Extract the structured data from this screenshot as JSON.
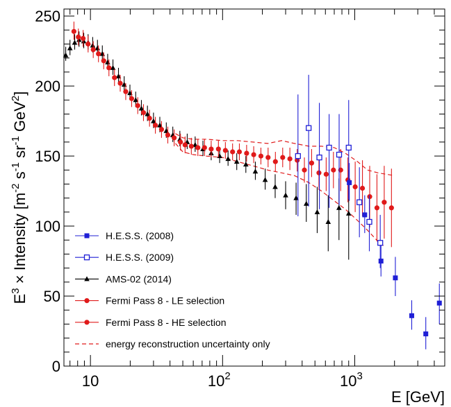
{
  "chart_data": {
    "type": "scatter",
    "xlabel": "E [GeV]",
    "ylabel_parts": [
      "E",
      "3",
      " × Intensity [m",
      "-2",
      " s",
      "-1",
      " sr",
      "-1",
      " GeV",
      "2",
      "]"
    ],
    "xscale": "log",
    "xlim": [
      6.3,
      4800
    ],
    "ylim": [
      0,
      255
    ],
    "x_tick_labels": [
      {
        "value": 10,
        "base": "10",
        "exp": ""
      },
      {
        "value": 100,
        "base": "10",
        "exp": "2"
      },
      {
        "value": 1000,
        "base": "10",
        "exp": "3"
      }
    ],
    "y_ticks": [
      0,
      50,
      100,
      150,
      200,
      250
    ],
    "legend_position": "bottom-left",
    "series": [
      {
        "name": "H.E.S.S. (2008)",
        "color": "#1f1fd6",
        "marker": "square-filled",
        "points": [
          {
            "x": 910,
            "y": 131,
            "lo": 118,
            "hi": 145
          },
          {
            "x": 1190,
            "y": 108,
            "lo": 95,
            "hi": 122
          },
          {
            "x": 1580,
            "y": 75,
            "lo": 64,
            "hi": 86
          },
          {
            "x": 2030,
            "y": 63,
            "lo": 50,
            "hi": 78
          },
          {
            "x": 2700,
            "y": 36,
            "lo": 26,
            "hi": 47
          },
          {
            "x": 3450,
            "y": 23,
            "lo": 12,
            "hi": 35
          },
          {
            "x": 4370,
            "y": 45,
            "lo": 30,
            "hi": 59
          }
        ]
      },
      {
        "name": "H.E.S.S. (2009)",
        "color": "#1f1fd6",
        "marker": "square-open",
        "points": [
          {
            "x": 372,
            "y": 150,
            "lo": 107,
            "hi": 194
          },
          {
            "x": 448,
            "y": 170,
            "lo": 114,
            "hi": 208
          },
          {
            "x": 540,
            "y": 149,
            "lo": 112,
            "hi": 188
          },
          {
            "x": 640,
            "y": 156,
            "lo": 113,
            "hi": 180
          },
          {
            "x": 762,
            "y": 151,
            "lo": 115,
            "hi": 180
          },
          {
            "x": 900,
            "y": 156,
            "lo": 119,
            "hi": 190
          },
          {
            "x": 1085,
            "y": 117,
            "lo": 92,
            "hi": 142
          },
          {
            "x": 1290,
            "y": 103,
            "lo": 82,
            "hi": 122
          },
          {
            "x": 1560,
            "y": 88,
            "lo": 70,
            "hi": 108
          }
        ]
      },
      {
        "name": "AMS-02 (2014)",
        "color": "#000000",
        "marker": "triangle",
        "points": [
          {
            "x": 6.5,
            "y": 222,
            "lo": 218,
            "hi": 228
          },
          {
            "x": 7.0,
            "y": 227,
            "lo": 222,
            "hi": 233
          },
          {
            "x": 7.6,
            "y": 231,
            "lo": 226,
            "hi": 237
          },
          {
            "x": 8.2,
            "y": 233,
            "lo": 228,
            "hi": 239
          },
          {
            "x": 8.9,
            "y": 232,
            "lo": 227,
            "hi": 238
          },
          {
            "x": 9.6,
            "y": 231,
            "lo": 226,
            "hi": 237
          },
          {
            "x": 10.4,
            "y": 229,
            "lo": 224,
            "hi": 235
          },
          {
            "x": 11.3,
            "y": 227,
            "lo": 222,
            "hi": 233
          },
          {
            "x": 12.3,
            "y": 223,
            "lo": 218,
            "hi": 229
          },
          {
            "x": 13.5,
            "y": 217,
            "lo": 212,
            "hi": 223
          },
          {
            "x": 14.8,
            "y": 213,
            "lo": 208,
            "hi": 219
          },
          {
            "x": 16.3,
            "y": 207,
            "lo": 202,
            "hi": 213
          },
          {
            "x": 18.0,
            "y": 201,
            "lo": 196,
            "hi": 207
          },
          {
            "x": 19.9,
            "y": 195,
            "lo": 190,
            "hi": 201
          },
          {
            "x": 22.0,
            "y": 190,
            "lo": 185,
            "hi": 196
          },
          {
            "x": 24.3,
            "y": 184,
            "lo": 179,
            "hi": 190
          },
          {
            "x": 27.0,
            "y": 180,
            "lo": 175,
            "hi": 186
          },
          {
            "x": 30.0,
            "y": 175,
            "lo": 170,
            "hi": 181
          },
          {
            "x": 33.5,
            "y": 172,
            "lo": 167,
            "hi": 178
          },
          {
            "x": 37.5,
            "y": 168,
            "lo": 163,
            "hi": 174
          },
          {
            "x": 42.0,
            "y": 165,
            "lo": 160,
            "hi": 171
          },
          {
            "x": 47.5,
            "y": 162,
            "lo": 157,
            "hi": 168
          },
          {
            "x": 54.0,
            "y": 160,
            "lo": 155,
            "hi": 166
          },
          {
            "x": 62.0,
            "y": 158,
            "lo": 153,
            "hi": 164
          },
          {
            "x": 71.0,
            "y": 155,
            "lo": 150,
            "hi": 161
          },
          {
            "x": 82.0,
            "y": 152,
            "lo": 147,
            "hi": 158
          },
          {
            "x": 95.0,
            "y": 150,
            "lo": 145,
            "hi": 156
          },
          {
            "x": 110,
            "y": 148,
            "lo": 143,
            "hi": 154
          },
          {
            "x": 128,
            "y": 146,
            "lo": 140,
            "hi": 152
          },
          {
            "x": 150,
            "y": 144,
            "lo": 138,
            "hi": 150
          },
          {
            "x": 177,
            "y": 139,
            "lo": 133,
            "hi": 146
          },
          {
            "x": 210,
            "y": 133,
            "lo": 126,
            "hi": 141
          },
          {
            "x": 250,
            "y": 128,
            "lo": 120,
            "hi": 137
          },
          {
            "x": 300,
            "y": 122,
            "lo": 112,
            "hi": 132
          },
          {
            "x": 360,
            "y": 120,
            "lo": 108,
            "hi": 131
          },
          {
            "x": 430,
            "y": 116,
            "lo": 103,
            "hi": 130
          },
          {
            "x": 520,
            "y": 110,
            "lo": 95,
            "hi": 128
          },
          {
            "x": 630,
            "y": 103,
            "lo": 82,
            "hi": 122
          },
          {
            "x": 760,
            "y": 113,
            "lo": 90,
            "hi": 134
          },
          {
            "x": 900,
            "y": 109,
            "lo": 76,
            "hi": 140
          }
        ]
      },
      {
        "name": "Fermi Pass 8 - LE selection",
        "color": "#e01a1a",
        "marker": "circle",
        "points": [
          {
            "x": 7.5,
            "y": 239,
            "lo": 233,
            "hi": 246
          },
          {
            "x": 8.1,
            "y": 235,
            "lo": 229,
            "hi": 241
          },
          {
            "x": 8.8,
            "y": 234,
            "lo": 228,
            "hi": 240
          },
          {
            "x": 9.6,
            "y": 230,
            "lo": 224,
            "hi": 236
          },
          {
            "x": 10.5,
            "y": 226,
            "lo": 220,
            "hi": 232
          },
          {
            "x": 11.5,
            "y": 223,
            "lo": 217,
            "hi": 229
          },
          {
            "x": 12.6,
            "y": 218,
            "lo": 212,
            "hi": 224
          },
          {
            "x": 13.8,
            "y": 213,
            "lo": 207,
            "hi": 219
          },
          {
            "x": 15.2,
            "y": 206,
            "lo": 200,
            "hi": 212
          },
          {
            "x": 16.8,
            "y": 202,
            "lo": 196,
            "hi": 208
          },
          {
            "x": 18.5,
            "y": 196,
            "lo": 190,
            "hi": 202
          },
          {
            "x": 20.5,
            "y": 191,
            "lo": 185,
            "hi": 197
          },
          {
            "x": 22.8,
            "y": 186,
            "lo": 180,
            "hi": 192
          },
          {
            "x": 25.2,
            "y": 181,
            "lo": 175,
            "hi": 187
          },
          {
            "x": 28.0,
            "y": 177,
            "lo": 171,
            "hi": 183
          },
          {
            "x": 31.0,
            "y": 172,
            "lo": 166,
            "hi": 178
          },
          {
            "x": 34.5,
            "y": 169,
            "lo": 163,
            "hi": 175
          },
          {
            "x": 38.5,
            "y": 165,
            "lo": 159,
            "hi": 171
          },
          {
            "x": 43.0,
            "y": 163,
            "lo": 157,
            "hi": 169
          },
          {
            "x": 48.0,
            "y": 160,
            "lo": 154,
            "hi": 166
          }
        ]
      },
      {
        "name": "Fermi Pass 8 - HE selection",
        "color": "#e01a1a",
        "marker": "circle",
        "points": [
          {
            "x": 52,
            "y": 158,
            "lo": 152,
            "hi": 164
          },
          {
            "x": 58,
            "y": 157,
            "lo": 151,
            "hi": 163
          },
          {
            "x": 65,
            "y": 156,
            "lo": 150,
            "hi": 162
          },
          {
            "x": 73,
            "y": 156,
            "lo": 150,
            "hi": 162
          },
          {
            "x": 82,
            "y": 155,
            "lo": 149,
            "hi": 161
          },
          {
            "x": 93,
            "y": 155,
            "lo": 149,
            "hi": 161
          },
          {
            "x": 105,
            "y": 154,
            "lo": 148,
            "hi": 160
          },
          {
            "x": 119,
            "y": 153,
            "lo": 147,
            "hi": 159
          },
          {
            "x": 134,
            "y": 153,
            "lo": 147,
            "hi": 159
          },
          {
            "x": 152,
            "y": 152,
            "lo": 146,
            "hi": 158
          },
          {
            "x": 172,
            "y": 151,
            "lo": 145,
            "hi": 157
          },
          {
            "x": 195,
            "y": 150,
            "lo": 144,
            "hi": 156
          },
          {
            "x": 221,
            "y": 149,
            "lo": 142,
            "hi": 156
          },
          {
            "x": 251,
            "y": 146,
            "lo": 139,
            "hi": 153
          },
          {
            "x": 285,
            "y": 149,
            "lo": 142,
            "hi": 156
          },
          {
            "x": 323,
            "y": 148,
            "lo": 140,
            "hi": 156
          },
          {
            "x": 367,
            "y": 147,
            "lo": 139,
            "hi": 155
          },
          {
            "x": 416,
            "y": 140,
            "lo": 131,
            "hi": 149
          },
          {
            "x": 472,
            "y": 145,
            "lo": 135,
            "hi": 155
          },
          {
            "x": 536,
            "y": 138,
            "lo": 127,
            "hi": 149
          },
          {
            "x": 608,
            "y": 137,
            "lo": 125,
            "hi": 149
          },
          {
            "x": 690,
            "y": 140,
            "lo": 127,
            "hi": 153
          },
          {
            "x": 783,
            "y": 140,
            "lo": 125,
            "hi": 155
          },
          {
            "x": 888,
            "y": 133,
            "lo": 117,
            "hi": 149
          },
          {
            "x": 1008,
            "y": 128,
            "lo": 110,
            "hi": 146
          },
          {
            "x": 1144,
            "y": 127,
            "lo": 107,
            "hi": 147
          },
          {
            "x": 1298,
            "y": 121,
            "lo": 99,
            "hi": 143
          },
          {
            "x": 1473,
            "y": 113,
            "lo": 89,
            "hi": 137
          },
          {
            "x": 1672,
            "y": 117,
            "lo": 91,
            "hi": 143
          },
          {
            "x": 1897,
            "y": 113,
            "lo": 85,
            "hi": 141
          }
        ]
      }
    ],
    "band": {
      "name": "energy reconstruction uncertainty only",
      "color": "#e01a1a",
      "style": "dashed",
      "upper": [
        {
          "x": 44,
          "y": 166
        },
        {
          "x": 50,
          "y": 163
        },
        {
          "x": 60,
          "y": 162
        },
        {
          "x": 75,
          "y": 162
        },
        {
          "x": 100,
          "y": 161
        },
        {
          "x": 130,
          "y": 161
        },
        {
          "x": 170,
          "y": 160
        },
        {
          "x": 220,
          "y": 159
        },
        {
          "x": 280,
          "y": 161
        },
        {
          "x": 350,
          "y": 159
        },
        {
          "x": 450,
          "y": 157
        },
        {
          "x": 560,
          "y": 157
        },
        {
          "x": 700,
          "y": 156
        },
        {
          "x": 850,
          "y": 152
        },
        {
          "x": 1050,
          "y": 146
        },
        {
          "x": 1250,
          "y": 140
        },
        {
          "x": 1500,
          "y": 138
        },
        {
          "x": 2000,
          "y": 136
        }
      ],
      "lower": [
        {
          "x": 44,
          "y": 159
        },
        {
          "x": 50,
          "y": 153
        },
        {
          "x": 60,
          "y": 151
        },
        {
          "x": 75,
          "y": 150
        },
        {
          "x": 100,
          "y": 149
        },
        {
          "x": 130,
          "y": 146
        },
        {
          "x": 170,
          "y": 143
        },
        {
          "x": 220,
          "y": 140
        },
        {
          "x": 280,
          "y": 138
        },
        {
          "x": 350,
          "y": 136
        },
        {
          "x": 450,
          "y": 131
        },
        {
          "x": 560,
          "y": 125
        },
        {
          "x": 700,
          "y": 118
        },
        {
          "x": 850,
          "y": 112
        },
        {
          "x": 1050,
          "y": 104
        },
        {
          "x": 1250,
          "y": 97
        },
        {
          "x": 1500,
          "y": 89
        },
        {
          "x": 1650,
          "y": 86
        }
      ]
    }
  }
}
